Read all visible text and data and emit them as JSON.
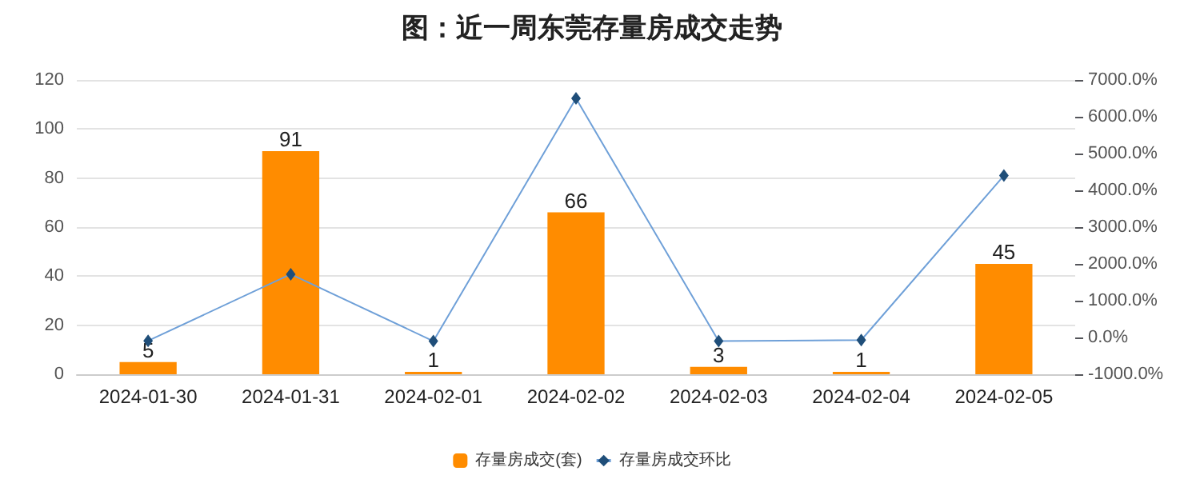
{
  "chart_data": {
    "type": "bar",
    "title": "图：近一周东莞存量房成交走势",
    "categories": [
      "2024-01-30",
      "2024-01-31",
      "2024-02-01",
      "2024-02-02",
      "2024-02-03",
      "2024-02-04",
      "2024-02-05"
    ],
    "series": [
      {
        "name": "存量房成交(套)",
        "color": "#ff8c00",
        "values": [
          5,
          91,
          1,
          66,
          3,
          1,
          45
        ],
        "value_labels": [
          "5",
          "91",
          "1",
          "66",
          "3",
          "1",
          "45"
        ]
      },
      {
        "name": "存量房成交环比",
        "type": "line",
        "axis": "y2",
        "color": "#6fa0d8",
        "marker": "diamond",
        "values": [
          -90,
          1720,
          -100,
          6500,
          -100,
          -70,
          4400
        ]
      }
    ],
    "ylim": [
      0,
      120
    ],
    "yticks": [
      0,
      20,
      40,
      60,
      80,
      100,
      120
    ],
    "y2lim": [
      -1000,
      7000
    ],
    "y2ticks": [
      {
        "value": -1000,
        "label": "-1000.0%"
      },
      {
        "value": 0,
        "label": "0.0%"
      },
      {
        "value": 1000,
        "label": "1000.0%"
      },
      {
        "value": 2000,
        "label": "2000.0%"
      },
      {
        "value": 3000,
        "label": "3000.0%"
      },
      {
        "value": 4000,
        "label": "4000.0%"
      },
      {
        "value": 5000,
        "label": "5000.0%"
      },
      {
        "value": 6000,
        "label": "6000.0%"
      },
      {
        "value": 7000,
        "label": "7000.0%"
      }
    ],
    "grid": "y",
    "legend": "bottom"
  }
}
